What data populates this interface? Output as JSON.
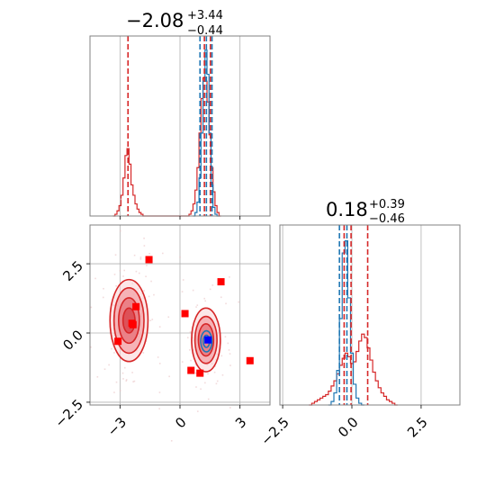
{
  "colors": {
    "red": "#d62728",
    "blue": "#1f77b4",
    "pink_fill": "#f4a6aa",
    "pink_mid": "#e8747a",
    "pink_light": "#f9d3d5",
    "grid": "#b0b0b0",
    "frame": "#808080",
    "marker_red": "#ff0000",
    "marker_blue": "#0000ff"
  },
  "titles": {
    "x": {
      "main": "−2.08",
      "plus": "+3.44",
      "minus": "−0.44"
    },
    "y": {
      "main": "0.18",
      "plus": "+0.39",
      "minus": "−0.46"
    }
  },
  "chart_data": [
    {
      "type": "histogram",
      "panel": "top-left marginal of x",
      "xlim": [
        -4.5,
        4.5
      ],
      "grid": true,
      "series": [
        {
          "color": "#d62728",
          "bins": [
            [
              -3.3,
              0.0
            ],
            [
              -3.2,
              0.01
            ],
            [
              -3.1,
              0.03
            ],
            [
              -3.0,
              0.06
            ],
            [
              -2.9,
              0.12
            ],
            [
              -2.8,
              0.22
            ],
            [
              -2.7,
              0.35
            ],
            [
              -2.6,
              0.39
            ],
            [
              -2.5,
              0.3
            ],
            [
              -2.4,
              0.18
            ],
            [
              -2.3,
              0.12
            ],
            [
              -2.2,
              0.07
            ],
            [
              -2.1,
              0.04
            ],
            [
              -2.0,
              0.02
            ],
            [
              -1.9,
              0.01
            ],
            [
              -1.8,
              0.0
            ],
            [
              0.4,
              0.0
            ],
            [
              0.5,
              0.01
            ],
            [
              0.6,
              0.03
            ],
            [
              0.7,
              0.07
            ],
            [
              0.8,
              0.15
            ],
            [
              0.9,
              0.28
            ],
            [
              1.0,
              0.48
            ],
            [
              1.1,
              0.68
            ],
            [
              1.2,
              0.8
            ],
            [
              1.3,
              0.78
            ],
            [
              1.4,
              0.66
            ],
            [
              1.5,
              0.47
            ],
            [
              1.6,
              0.28
            ],
            [
              1.7,
              0.14
            ],
            [
              1.8,
              0.06
            ],
            [
              1.9,
              0.02
            ],
            [
              2.0,
              0.0
            ]
          ]
        },
        {
          "color": "#1f77b4",
          "bins": [
            [
              0.7,
              0.0
            ],
            [
              0.8,
              0.02
            ],
            [
              0.9,
              0.08
            ],
            [
              1.0,
              0.22
            ],
            [
              1.1,
              0.48
            ],
            [
              1.2,
              0.78
            ],
            [
              1.3,
              0.96
            ],
            [
              1.4,
              0.82
            ],
            [
              1.5,
              0.48
            ],
            [
              1.6,
              0.18
            ],
            [
              1.7,
              0.05
            ],
            [
              1.8,
              0.01
            ],
            [
              1.9,
              0.0
            ]
          ]
        }
      ],
      "vlines": [
        {
          "x": -2.6,
          "color": "#d62728"
        },
        {
          "x": 1.0,
          "color": "#1f77b4"
        },
        {
          "x": 1.22,
          "color": "#d62728"
        },
        {
          "x": 1.32,
          "color": "#1f77b4"
        },
        {
          "x": 1.52,
          "color": "#d62728"
        },
        {
          "x": 1.6,
          "color": "#1f77b4"
        }
      ]
    },
    {
      "type": "contour",
      "panel": "bottom-left joint of x and y",
      "xlim": [
        -4.5,
        4.5
      ],
      "ylim": [
        -2.6,
        3.9
      ],
      "xticks": [
        -3,
        0,
        3
      ],
      "xtick_labels": [
        "−3",
        "0",
        "3"
      ],
      "yticks": [
        -2.5,
        0.0,
        2.5
      ],
      "ytick_labels": [
        "−2.5",
        "0.0",
        "2.5"
      ],
      "grid": true,
      "modes": [
        {
          "cx": -2.55,
          "cy": 0.45,
          "levels": [
            [
              0.95,
              1.48
            ],
            [
              0.75,
              1.18
            ],
            [
              0.52,
              0.82
            ],
            [
              0.3,
              0.45
            ]
          ]
        },
        {
          "cx": 1.3,
          "cy": -0.25,
          "levels": [
            [
              0.72,
              1.15
            ],
            [
              0.55,
              0.85
            ],
            [
              0.38,
              0.58
            ]
          ]
        }
      ],
      "blue_contours": [
        {
          "cx": 1.32,
          "cy": -0.3,
          "rx": 0.28,
          "ry": 0.38
        },
        {
          "cx": 1.32,
          "cy": -0.3,
          "rx": 0.16,
          "ry": 0.22
        }
      ],
      "red_markers": [
        [
          -1.55,
          2.65
        ],
        [
          -2.2,
          0.95
        ],
        [
          -3.1,
          -0.3
        ],
        [
          -2.35,
          0.3
        ],
        [
          -2.4,
          0.35
        ],
        [
          0.25,
          0.7
        ],
        [
          2.05,
          1.85
        ],
        [
          0.55,
          -1.35
        ],
        [
          1.0,
          -1.45
        ],
        [
          3.5,
          -1.0
        ]
      ],
      "blue_markers": [
        [
          1.4,
          -0.25
        ]
      ]
    },
    {
      "type": "histogram",
      "panel": "bottom-right marginal of y",
      "xlim": [
        -2.6,
        3.9
      ],
      "xticks": [
        -2.5,
        0.0,
        2.5
      ],
      "xtick_labels": [
        "−2.5",
        "0.0",
        "2.5"
      ],
      "grid": true,
      "series": [
        {
          "color": "#d62728",
          "bins": [
            [
              -1.5,
              0.0
            ],
            [
              -1.4,
              0.01
            ],
            [
              -1.3,
              0.02
            ],
            [
              -1.2,
              0.03
            ],
            [
              -1.1,
              0.04
            ],
            [
              -1.0,
              0.05
            ],
            [
              -0.9,
              0.06
            ],
            [
              -0.8,
              0.08
            ],
            [
              -0.7,
              0.11
            ],
            [
              -0.6,
              0.14
            ],
            [
              -0.5,
              0.18
            ],
            [
              -0.4,
              0.23
            ],
            [
              -0.3,
              0.27
            ],
            [
              -0.2,
              0.3
            ],
            [
              -0.1,
              0.28
            ],
            [
              0.0,
              0.24
            ],
            [
              0.1,
              0.25
            ],
            [
              0.2,
              0.31
            ],
            [
              0.3,
              0.37
            ],
            [
              0.4,
              0.41
            ],
            [
              0.5,
              0.39
            ],
            [
              0.6,
              0.33
            ],
            [
              0.7,
              0.26
            ],
            [
              0.8,
              0.19
            ],
            [
              0.9,
              0.14
            ],
            [
              1.0,
              0.1
            ],
            [
              1.1,
              0.07
            ],
            [
              1.2,
              0.05
            ],
            [
              1.3,
              0.03
            ],
            [
              1.4,
              0.02
            ],
            [
              1.5,
              0.01
            ],
            [
              1.6,
              0.0
            ]
          ]
        },
        {
          "color": "#1f77b4",
          "bins": [
            [
              -0.8,
              0.0
            ],
            [
              -0.7,
              0.02
            ],
            [
              -0.6,
              0.07
            ],
            [
              -0.5,
              0.2
            ],
            [
              -0.4,
              0.5
            ],
            [
              -0.3,
              0.88
            ],
            [
              -0.2,
              0.95
            ],
            [
              -0.1,
              0.62
            ],
            [
              0.0,
              0.3
            ],
            [
              0.1,
              0.12
            ],
            [
              0.2,
              0.04
            ],
            [
              0.3,
              0.01
            ],
            [
              0.4,
              0.0
            ]
          ]
        }
      ],
      "vlines": [
        {
          "x": -0.45,
          "color": "#1f77b4"
        },
        {
          "x": -0.28,
          "color": "#d62728"
        },
        {
          "x": -0.18,
          "color": "#1f77b4"
        },
        {
          "x": -0.03,
          "color": "#d62728"
        },
        {
          "x": 0.57,
          "color": "#d62728"
        }
      ]
    }
  ]
}
